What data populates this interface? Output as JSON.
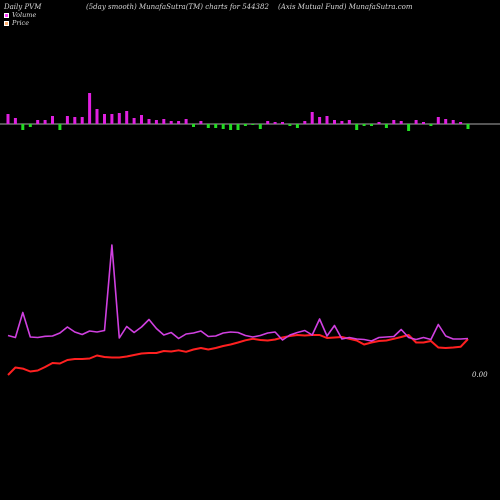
{
  "header": {
    "left": "Daily PVM",
    "middle": "(5day smooth) MunafaSutra(TM) charts for 544382",
    "right": "(Axis Mutual Fund) MunafaSutra.com"
  },
  "legend": {
    "volume_label": "Volume",
    "price_label": "Price"
  },
  "colors": {
    "background": "#000000",
    "volume_up": "#e020e0",
    "volume_down": "#22dd22",
    "price_line": "#ff2020",
    "smooth_line": "#d040e0",
    "volume_swatch": "#ff40ff",
    "price_swatch": "#ffb070"
  },
  "chart_data": {
    "type": "line",
    "end_label": "0.00",
    "volume": {
      "values": [
        10,
        6,
        -6,
        -3,
        4,
        4,
        8,
        -6,
        8,
        7,
        7,
        31,
        15,
        10,
        10,
        11,
        13,
        6,
        9,
        5,
        4,
        5,
        3,
        3,
        5,
        -3,
        3,
        -4,
        -4,
        -5,
        -6,
        -6,
        -2,
        -1,
        -5,
        3,
        2,
        2,
        -2,
        -4,
        3,
        12,
        7,
        8,
        4,
        3,
        4,
        -6,
        -2,
        -2,
        2,
        -4,
        4,
        3,
        -7,
        4,
        2,
        -2,
        7,
        5,
        4,
        2,
        -5
      ]
    },
    "series": [
      {
        "values": [
          0.0,
          0.3,
          0.255,
          0.14,
          0.18,
          0.32,
          0.48,
          0.46,
          0.6,
          0.64,
          0.64,
          0.66,
          0.78,
          0.72,
          0.7,
          0.7,
          0.74,
          0.8,
          0.86,
          0.88,
          0.88,
          0.96,
          0.94,
          0.99,
          0.93,
          1.02,
          1.08,
          1.02,
          1.08,
          1.16,
          1.22,
          1.3,
          1.39,
          1.45,
          1.4,
          1.38,
          1.42,
          1.5,
          1.56,
          1.6,
          1.58,
          1.6,
          1.6,
          1.48,
          1.5,
          1.52,
          1.45,
          1.38,
          1.22,
          1.3,
          1.36,
          1.38,
          1.45,
          1.52,
          1.6,
          1.3,
          1.3,
          1.36,
          1.1,
          1.08,
          1.1,
          1.13,
          1.44
        ]
      },
      {
        "values": [
          1.58,
          1.5,
          2.5,
          1.52,
          1.5,
          1.55,
          1.56,
          1.68,
          1.92,
          1.72,
          1.62,
          1.76,
          1.72,
          1.78,
          5.2,
          1.48,
          1.94,
          1.7,
          1.92,
          2.22,
          1.86,
          1.6,
          1.7,
          1.46,
          1.64,
          1.68,
          1.76,
          1.54,
          1.56,
          1.68,
          1.72,
          1.7,
          1.58,
          1.52,
          1.58,
          1.68,
          1.72,
          1.4,
          1.6,
          1.7,
          1.78,
          1.6,
          2.24,
          1.56,
          1.98,
          1.44,
          1.5,
          1.44,
          1.42,
          1.36,
          1.5,
          1.52,
          1.54,
          1.82,
          1.5,
          1.42,
          1.5,
          1.42,
          2.02,
          1.56,
          1.44,
          1.44,
          1.46
        ]
      }
    ]
  }
}
